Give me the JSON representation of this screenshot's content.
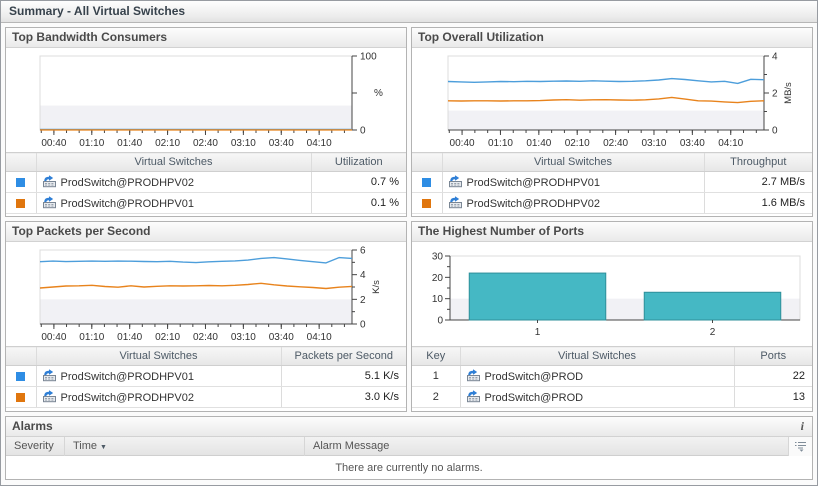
{
  "page": {
    "title": "Summary - All Virtual Switches"
  },
  "colors": {
    "series_blue": "#4d9edb",
    "series_orange": "#e8831c",
    "swatch_blue": "#2e8de4",
    "swatch_orange": "#e0760e",
    "bar_fill": "#45b8c4",
    "bar_stroke": "#2e8f9a"
  },
  "panels": {
    "bandwidth": {
      "title": "Top Bandwidth Consumers",
      "columns": {
        "entity": "Virtual Switches",
        "value": "Utilization"
      },
      "rows": [
        {
          "swatch": "#2e8de4",
          "name": "ProdSwitch@PRODHPV02",
          "value": "0.7 %"
        },
        {
          "swatch": "#e0760e",
          "name": "ProdSwitch@PRODHPV01",
          "value": "0.1 %"
        }
      ]
    },
    "utilization": {
      "title": "Top Overall Utilization",
      "columns": {
        "entity": "Virtual Switches",
        "value": "Throughput"
      },
      "rows": [
        {
          "swatch": "#2e8de4",
          "name": "ProdSwitch@PRODHPV01",
          "value": "2.7 MB/s"
        },
        {
          "swatch": "#e0760e",
          "name": "ProdSwitch@PRODHPV02",
          "value": "1.6 MB/s"
        }
      ]
    },
    "packets": {
      "title": "Top Packets per Second",
      "columns": {
        "entity": "Virtual Switches",
        "value": "Packets per Second"
      },
      "rows": [
        {
          "swatch": "#2e8de4",
          "name": "ProdSwitch@PRODHPV01",
          "value": "5.1 K/s"
        },
        {
          "swatch": "#e0760e",
          "name": "ProdSwitch@PRODHPV02",
          "value": "3.0 K/s"
        }
      ]
    },
    "ports": {
      "title": "The Highest Number of Ports",
      "columns": {
        "key": "Key",
        "entity": "Virtual Switches",
        "value": "Ports"
      },
      "rows": [
        {
          "key": "1",
          "name": "ProdSwitch@PROD",
          "value": "22"
        },
        {
          "key": "2",
          "name": "ProdSwitch@PROD",
          "value": "13"
        }
      ]
    }
  },
  "alarms": {
    "title": "Alarms",
    "info_icon": "i",
    "columns": {
      "severity": "Severity",
      "time": "Time",
      "message": "Alarm Message"
    },
    "sort_indicator": "▼",
    "empty_message": "There are currently no alarms."
  },
  "chart_data": [
    {
      "type": "line",
      "title": "Top Bandwidth Consumers",
      "ylabel": "%",
      "ylabel_rotated": false,
      "ylim": [
        0,
        100
      ],
      "shade_below": 33,
      "yticks": [
        {
          "v": 0,
          "label": "0",
          "major": true
        },
        {
          "v": 50,
          "label": "",
          "major": true
        },
        {
          "v": 100,
          "label": "100",
          "major": true
        }
      ],
      "x_range": [
        29,
        276
      ],
      "x_minor_step": 10,
      "x_minor_start": 30,
      "x_minor_end": 270,
      "x_major": [
        40,
        70,
        100,
        130,
        160,
        190,
        220,
        250
      ],
      "x_labels": [
        "00:40",
        "01:10",
        "01:40",
        "02:10",
        "02:40",
        "03:10",
        "03:40",
        "04:10"
      ],
      "series": [
        {
          "name": "ProdSwitch@PRODHPV02",
          "color": "#4d9edb",
          "values": [
            0.7,
            0.7,
            0.7,
            0.7,
            0.7,
            0.7,
            0.7,
            0.7,
            0.7,
            0.7,
            0.7,
            0.7,
            0.7,
            0.7,
            0.7,
            0.7,
            0.7,
            0.7,
            0.7,
            0.7,
            0.7,
            0.7,
            0.7,
            0.7,
            0.7
          ]
        },
        {
          "name": "ProdSwitch@PRODHPV01",
          "color": "#e8831c",
          "values": [
            0.1,
            0.1,
            0.1,
            0.1,
            0.1,
            0.1,
            0.1,
            0.1,
            0.1,
            0.1,
            0.1,
            0.1,
            0.1,
            0.1,
            0.1,
            0.1,
            0.1,
            0.1,
            0.1,
            0.1,
            0.1,
            0.1,
            0.1,
            0.1,
            0.1
          ]
        }
      ]
    },
    {
      "type": "line",
      "title": "Top Overall Utilization",
      "ylabel": "MB/s",
      "ylabel_rotated": true,
      "ylim": [
        0,
        4
      ],
      "shade_below": 1.05,
      "yticks": [
        {
          "v": 0,
          "label": "0",
          "major": true
        },
        {
          "v": 1,
          "label": "",
          "major": false
        },
        {
          "v": 2,
          "label": "2",
          "major": true
        },
        {
          "v": 3,
          "label": "",
          "major": false
        },
        {
          "v": 4,
          "label": "4",
          "major": true
        }
      ],
      "x_range": [
        29,
        276
      ],
      "x_minor_step": 10,
      "x_minor_start": 30,
      "x_minor_end": 270,
      "x_major": [
        40,
        70,
        100,
        130,
        160,
        190,
        220,
        250
      ],
      "x_labels": [
        "00:40",
        "01:10",
        "01:40",
        "02:10",
        "02:40",
        "03:10",
        "03:40",
        "04:10"
      ],
      "series": [
        {
          "name": "ProdSwitch@PRODHPV01",
          "color": "#4d9edb",
          "values": [
            2.62,
            2.6,
            2.58,
            2.6,
            2.62,
            2.61,
            2.63,
            2.62,
            2.64,
            2.65,
            2.63,
            2.66,
            2.64,
            2.62,
            2.63,
            2.66,
            2.7,
            2.78,
            2.73,
            2.66,
            2.6,
            2.63,
            2.52,
            2.74,
            2.72
          ]
        },
        {
          "name": "ProdSwitch@PRODHPV02",
          "color": "#e8831c",
          "values": [
            1.58,
            1.57,
            1.58,
            1.58,
            1.57,
            1.58,
            1.58,
            1.59,
            1.62,
            1.64,
            1.61,
            1.63,
            1.64,
            1.62,
            1.61,
            1.63,
            1.68,
            1.76,
            1.67,
            1.58,
            1.56,
            1.52,
            1.48,
            1.55,
            1.58
          ]
        }
      ]
    },
    {
      "type": "line",
      "title": "Top Packets per Second",
      "ylabel": "K/s",
      "ylabel_rotated": true,
      "ylim": [
        0,
        6
      ],
      "shade_below": 2,
      "yticks": [
        {
          "v": 0,
          "label": "0",
          "major": true
        },
        {
          "v": 1,
          "label": "",
          "major": false
        },
        {
          "v": 2,
          "label": "2",
          "major": true
        },
        {
          "v": 3,
          "label": "",
          "major": false
        },
        {
          "v": 4,
          "label": "4",
          "major": true
        },
        {
          "v": 5,
          "label": "",
          "major": false
        },
        {
          "v": 6,
          "label": "6",
          "major": true
        }
      ],
      "x_range": [
        29,
        276
      ],
      "x_minor_step": 10,
      "x_minor_start": 30,
      "x_minor_end": 270,
      "x_major": [
        40,
        70,
        100,
        130,
        160,
        190,
        220,
        250
      ],
      "x_labels": [
        "00:40",
        "01:10",
        "01:40",
        "02:10",
        "02:40",
        "03:10",
        "03:40",
        "04:10"
      ],
      "series": [
        {
          "name": "ProdSwitch@PRODHPV01",
          "color": "#4d9edb",
          "values": [
            5.05,
            5.1,
            5.06,
            5.08,
            5.1,
            5.08,
            5.1,
            5.09,
            5.07,
            5.05,
            5.08,
            5.02,
            4.98,
            5.04,
            5.08,
            5.12,
            5.18,
            5.32,
            5.38,
            5.28,
            5.16,
            5.05,
            4.95,
            5.38,
            5.32
          ]
        },
        {
          "name": "ProdSwitch@PRODHPV02",
          "color": "#e8831c",
          "values": [
            2.92,
            3.0,
            3.08,
            3.1,
            3.14,
            3.04,
            2.98,
            3.1,
            3.0,
            3.06,
            3.1,
            3.08,
            3.1,
            3.12,
            3.1,
            3.14,
            3.2,
            3.3,
            3.18,
            3.08,
            3.02,
            2.96,
            2.88,
            2.98,
            3.05
          ]
        }
      ]
    },
    {
      "type": "bar",
      "title": "The Highest Number of Ports",
      "ylabel": "",
      "ylim": [
        0,
        30
      ],
      "shade_below": 10,
      "yticks": [
        {
          "v": 0,
          "label": "0",
          "major": true
        },
        {
          "v": 5,
          "label": "",
          "major": false
        },
        {
          "v": 10,
          "label": "10",
          "major": true
        },
        {
          "v": 15,
          "label": "",
          "major": false
        },
        {
          "v": 20,
          "label": "20",
          "major": true
        },
        {
          "v": 25,
          "label": "",
          "major": false
        },
        {
          "v": 30,
          "label": "30",
          "major": true
        }
      ],
      "categories": [
        "1",
        "2"
      ],
      "values": [
        22,
        13
      ],
      "bar_fill": "#45b8c4",
      "bar_stroke": "#2e8f9a"
    }
  ]
}
